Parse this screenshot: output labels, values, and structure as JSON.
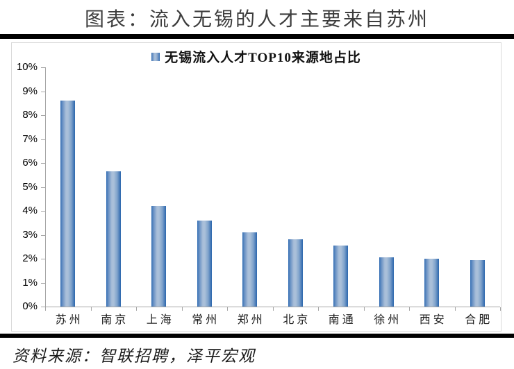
{
  "page": {
    "title": "图表：流入无锡的人才主要来自苏州",
    "source": "资料来源：智联招聘，泽平宏观"
  },
  "chart_data": {
    "type": "bar",
    "title": "无锡流入人才TOP10来源地占比",
    "legend": {
      "label": "无锡流入人才TOP10来源地占比",
      "position": "top-center",
      "marker": "blue-gradient-square"
    },
    "categories": [
      "苏州",
      "南京",
      "上海",
      "常州",
      "郑州",
      "北京",
      "南通",
      "徐州",
      "西安",
      "合肥"
    ],
    "values": [
      8.6,
      5.65,
      4.2,
      3.6,
      3.1,
      2.8,
      2.55,
      2.05,
      2.0,
      1.95
    ],
    "unit": "%",
    "xlabel": "",
    "ylabel": "",
    "ylim": [
      0,
      10
    ],
    "ytick_step": 1,
    "ytick_labels": [
      "0%",
      "1%",
      "2%",
      "3%",
      "4%",
      "5%",
      "6%",
      "7%",
      "8%",
      "9%",
      "10%"
    ],
    "grid": false,
    "colors": {
      "bar_edge": "#2f6cb3",
      "bar_center": "#a9bfd9",
      "axis": "#a6a6a6",
      "rule": "#000000",
      "panel_border": "#d9d9d9"
    }
  }
}
